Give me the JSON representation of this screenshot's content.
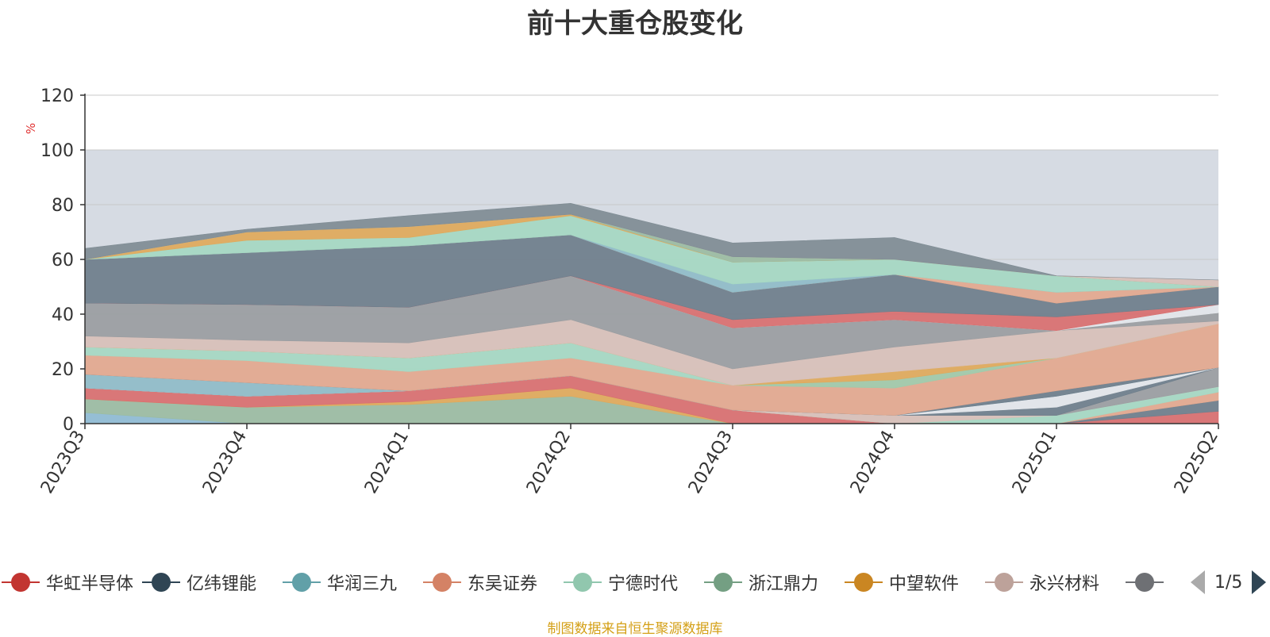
{
  "title": "前十大重仓股变化",
  "source_note": "制图数据来自恒生聚源数据库",
  "legend_pager": {
    "text": "1/5"
  },
  "chart_data": {
    "type": "area",
    "stacked": true,
    "x": [
      "2023Q3",
      "2023Q4",
      "2024Q1",
      "2024Q2",
      "2024Q3",
      "2024Q4",
      "2025Q1",
      "2025Q2"
    ],
    "ylabel": "%",
    "ylim": [
      0,
      120
    ],
    "yticks": [
      0,
      20,
      40,
      60,
      80,
      100,
      120
    ],
    "highlight_band": [
      0,
      100
    ],
    "grid": true,
    "legend_position": "bottom",
    "series": [
      {
        "name": "",
        "color": "#8fbcd4",
        "values": [
          4,
          0,
          0,
          0,
          0,
          0,
          0,
          0
        ]
      },
      {
        "name": "浙江鼎力",
        "color": "#9bbca2",
        "values": [
          5,
          6,
          7,
          10,
          0,
          0,
          0,
          0
        ]
      },
      {
        "name": "中望软件",
        "color": "#e0a95a",
        "values": [
          0,
          0,
          1,
          3,
          0,
          0,
          0,
          0
        ]
      },
      {
        "name": "华虹半导体",
        "color": "#d96f6f",
        "values": [
          4,
          4,
          4,
          4.5,
          5,
          0,
          0,
          4.5
        ]
      },
      {
        "name": "",
        "color": "#6e7e8b",
        "values": [
          0,
          0,
          0,
          0,
          0,
          0,
          0,
          4
        ]
      },
      {
        "name": "",
        "color": "#e3a88e",
        "values": [
          0,
          0,
          0,
          0,
          0,
          0,
          0,
          3
        ]
      },
      {
        "name": "",
        "color": "#a5d8c2",
        "values": [
          0,
          0,
          0,
          0,
          0,
          0,
          3,
          2
        ]
      },
      {
        "name": "永兴材料",
        "color": "#d8c0b8",
        "values": [
          0,
          0,
          0,
          0,
          0,
          3,
          0,
          0
        ]
      },
      {
        "name": "",
        "color": "#9a9da1",
        "values": [
          0,
          0,
          0,
          0,
          0,
          0,
          0,
          7
        ]
      },
      {
        "name": "",
        "color": "#6e7e8b",
        "values": [
          0,
          0,
          0,
          0,
          0,
          0,
          3,
          0
        ]
      },
      {
        "name": "",
        "color": "#e3e6ea",
        "values": [
          0,
          0,
          0,
          0,
          0,
          0,
          4,
          0
        ]
      },
      {
        "name": "华润三九",
        "color": "#8fbcc8",
        "values": [
          5,
          5,
          0,
          0,
          0,
          0,
          0,
          0
        ]
      },
      {
        "name": "",
        "color": "#6e7e8b",
        "values": [
          0,
          0,
          0,
          0,
          0,
          0,
          2,
          0
        ]
      },
      {
        "name": "东吴证券",
        "color": "#e3a88e",
        "values": [
          7,
          8,
          7,
          6.5,
          9,
          10,
          12,
          16
        ]
      },
      {
        "name": "",
        "color": "#a5d8c2",
        "values": [
          3,
          3.5,
          5,
          5.5,
          0,
          0,
          0,
          0
        ]
      },
      {
        "name": "",
        "color": "#a1c9a8",
        "values": [
          0,
          0,
          0,
          0,
          0,
          3,
          0,
          0
        ]
      },
      {
        "name": "",
        "color": "#e0a95a",
        "values": [
          0,
          0,
          0,
          0,
          0,
          3,
          0,
          0
        ]
      },
      {
        "name": "",
        "color": "#d8c0b8",
        "values": [
          4,
          4,
          5.5,
          8.5,
          6,
          9,
          10,
          1
        ]
      },
      {
        "name": "",
        "color": "#9a9da1",
        "values": [
          12,
          13,
          13,
          16,
          15,
          10,
          0,
          3
        ]
      },
      {
        "name": "",
        "color": "#e3e6ea",
        "values": [
          0,
          0,
          0,
          0,
          0,
          0,
          0,
          3
        ]
      },
      {
        "name": "",
        "color": "#d96f6f",
        "values": [
          0,
          0,
          0,
          0,
          3,
          3,
          5,
          0
        ]
      },
      {
        "name": "亿纬锂能",
        "color": "#6e7e8b",
        "values": [
          16,
          19,
          22.5,
          15,
          10,
          13.5,
          5,
          6.5
        ]
      },
      {
        "name": "",
        "color": "#e3a88e",
        "values": [
          0,
          0,
          0,
          0,
          0,
          0,
          4,
          0
        ]
      },
      {
        "name": "",
        "color": "#8fbcc8",
        "values": [
          0,
          0,
          0,
          0,
          3,
          0,
          0,
          0
        ]
      },
      {
        "name": "宁德时代",
        "color": "#a5d8c2",
        "values": [
          0,
          4.5,
          3,
          7,
          8,
          5.5,
          6,
          0
        ]
      },
      {
        "name": "",
        "color": "#e0a95a",
        "values": [
          0,
          3,
          4,
          0.5,
          0,
          0,
          0,
          0
        ]
      },
      {
        "name": "",
        "color": "#9bbca2",
        "values": [
          0,
          0,
          0,
          0,
          2,
          0,
          0,
          0
        ]
      },
      {
        "name": "",
        "color": "#d8c0b8",
        "values": [
          0,
          0,
          0,
          0,
          0,
          0,
          0,
          2.5
        ]
      },
      {
        "name": "",
        "color": "#7f8c94",
        "values": [
          4,
          1,
          4,
          4,
          5,
          8,
          0,
          0
        ]
      }
    ]
  },
  "legend": [
    {
      "label": "华虹半导体",
      "color": "#c23531"
    },
    {
      "label": "亿纬锂能",
      "color": "#2f4554"
    },
    {
      "label": "华润三九",
      "color": "#61a0a8"
    },
    {
      "label": "东吴证券",
      "color": "#d48265"
    },
    {
      "label": "宁德时代",
      "color": "#91c7ae"
    },
    {
      "label": "浙江鼎力",
      "color": "#749f83"
    },
    {
      "label": "中望软件",
      "color": "#ca8622"
    },
    {
      "label": "永兴材料",
      "color": "#bda29a"
    },
    {
      "label": "",
      "color": "#6e7074"
    }
  ]
}
